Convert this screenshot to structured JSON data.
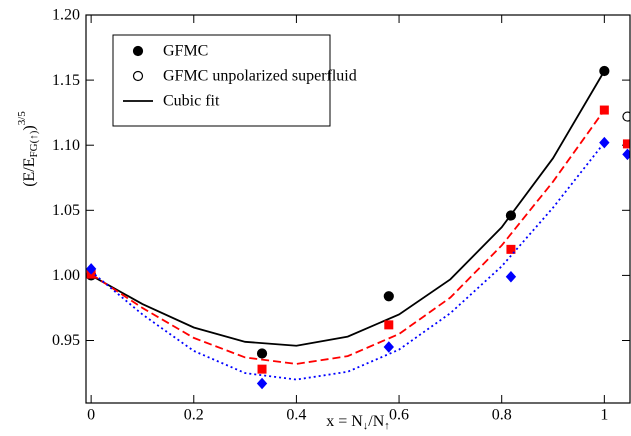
{
  "chart_data": {
    "type": "line",
    "xlabel": [
      "x = N",
      "↓",
      "/N",
      "↑"
    ],
    "ylabel": [
      "(E/E",
      "FG(↑)",
      ")",
      "3/5"
    ],
    "xlim": [
      -0.01,
      1.05
    ],
    "ylim": [
      0.902,
      1.2
    ],
    "xticks": [
      0,
      0.2,
      0.4,
      0.6,
      0.8,
      1
    ],
    "yticks": [
      0.95,
      {
        "value": 1,
        "label": "1.00"
      },
      1.05,
      {
        "value": 1.1,
        "label": "1.10"
      },
      1.15,
      {
        "value": 1.2,
        "label": "1.20"
      }
    ],
    "legend": "upper left",
    "series": [
      {
        "name": "GFMC",
        "kind": "points",
        "marker": "circle",
        "fill": true,
        "color": "#000000",
        "x": [
          0,
          0.333,
          0.58,
          0.818,
          1
        ],
        "values": [
          1.0,
          0.94,
          0.984,
          1.046,
          1.157
        ]
      },
      {
        "name": "GFMC unpolarized superfluid",
        "kind": "points",
        "marker": "circle",
        "fill": false,
        "color": "#000000",
        "x": [
          1.045
        ],
        "values": [
          1.122
        ]
      },
      {
        "name": "Cubic fit",
        "kind": "curve",
        "dash": "solid",
        "color": "#000000",
        "x": [
          0,
          0.1,
          0.2,
          0.3,
          0.4,
          0.5,
          0.6,
          0.7,
          0.8,
          0.9,
          1
        ],
        "values": [
          1.0,
          0.978,
          0.96,
          0.949,
          0.946,
          0.953,
          0.97,
          0.997,
          1.037,
          1.09,
          1.157
        ]
      },
      {
        "kind": "points",
        "marker": "square",
        "fill": true,
        "color": "#ff0000",
        "x": [
          0,
          0.333,
          0.58,
          0.818,
          1,
          1.045
        ],
        "values": [
          1.001,
          0.928,
          0.962,
          1.02,
          1.127,
          1.101
        ]
      },
      {
        "kind": "curve",
        "dash": "dashed",
        "color": "#ff0000",
        "x": [
          0,
          0.1,
          0.2,
          0.3,
          0.4,
          0.5,
          0.6,
          0.7,
          0.8,
          0.9,
          1
        ],
        "values": [
          1.001,
          0.975,
          0.952,
          0.937,
          0.932,
          0.938,
          0.955,
          0.983,
          1.023,
          1.072,
          1.127
        ]
      },
      {
        "kind": "points",
        "marker": "diamond",
        "fill": true,
        "color": "#0000ff",
        "x": [
          0,
          0.333,
          0.58,
          0.818,
          1,
          1.045
        ],
        "values": [
          1.005,
          0.917,
          0.945,
          0.999,
          1.102,
          1.093
        ]
      },
      {
        "kind": "curve",
        "dash": "dotted",
        "color": "#0000ff",
        "x": [
          0,
          0.1,
          0.2,
          0.3,
          0.4,
          0.5,
          0.6,
          0.7,
          0.8,
          0.9,
          1
        ],
        "values": [
          1.003,
          0.97,
          0.942,
          0.925,
          0.92,
          0.926,
          0.943,
          0.971,
          1.007,
          1.052,
          1.102
        ]
      }
    ]
  }
}
